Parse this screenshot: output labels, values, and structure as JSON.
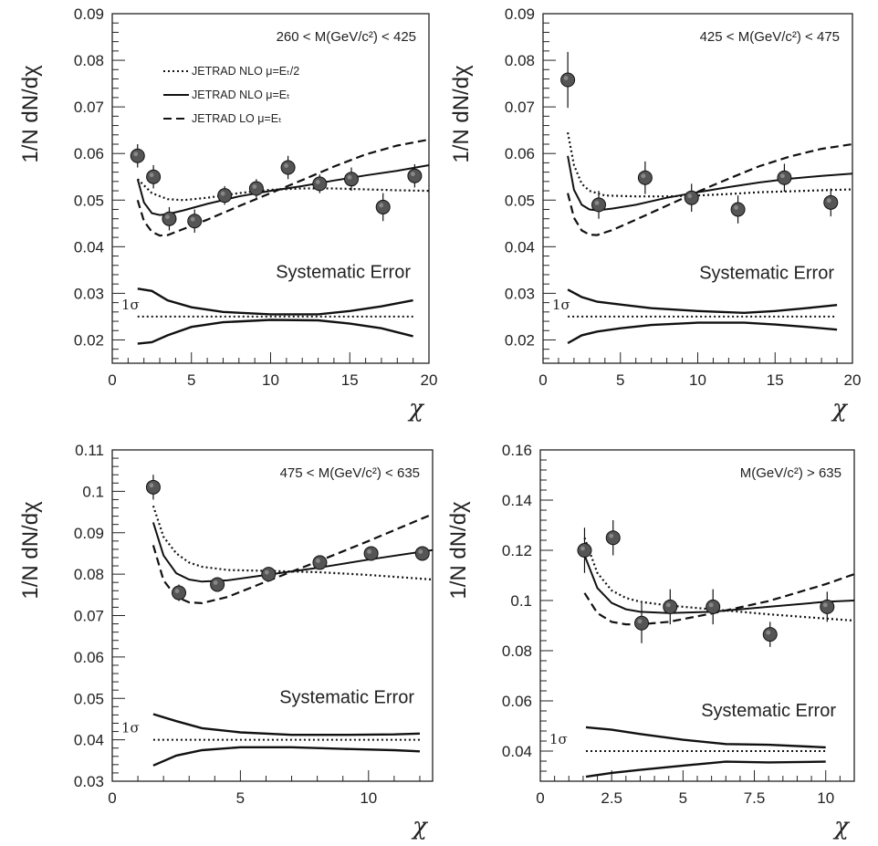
{
  "chart_data": [
    {
      "type": "scatter",
      "range_label": "260 < M(GeV/c²) < 425",
      "ylabel": "1/N dN/dχ",
      "xlabel": "χ",
      "xlim": [
        0,
        20
      ],
      "ylim": [
        0.015,
        0.09
      ],
      "xticks": [
        "0",
        "5",
        "10",
        "15",
        "20"
      ],
      "yticks": [
        "0.02",
        "0.03",
        "0.04",
        "0.05",
        "0.06",
        "0.07",
        "0.08",
        "0.09"
      ],
      "data_points": {
        "x": [
          1.6,
          2.6,
          3.6,
          5.2,
          7.1,
          9.1,
          11.1,
          13.1,
          15.1,
          17.1,
          19.1
        ],
        "y": [
          0.0595,
          0.055,
          0.046,
          0.0455,
          0.051,
          0.0525,
          0.057,
          0.0535,
          0.0545,
          0.0485,
          0.0552
        ],
        "err": [
          0.0025,
          0.0025,
          0.0025,
          0.0025,
          0.002,
          0.002,
          0.0025,
          0.002,
          0.0025,
          0.003,
          0.0025
        ]
      },
      "series": [
        {
          "name": "JETRAD NLO μ=Eₜ/2",
          "style": "dotted",
          "x": [
            1.6,
            2.5,
            3.5,
            4.5,
            6,
            8,
            10,
            12,
            14,
            16,
            18,
            20
          ],
          "y": [
            0.0545,
            0.0515,
            0.0502,
            0.05,
            0.0505,
            0.0515,
            0.0522,
            0.0525,
            0.0525,
            0.0523,
            0.0521,
            0.052
          ]
        },
        {
          "name": "JETRAD NLO μ=Eₜ",
          "style": "solid",
          "x": [
            1.6,
            2,
            2.5,
            3,
            3.5,
            4.5,
            6,
            8,
            10,
            12,
            14,
            16,
            18,
            20
          ],
          "y": [
            0.0545,
            0.0495,
            0.0472,
            0.0468,
            0.047,
            0.0478,
            0.0492,
            0.0508,
            0.052,
            0.053,
            0.0542,
            0.0553,
            0.0563,
            0.0575
          ]
        },
        {
          "name": "JETRAD LO μ=Eₜ",
          "style": "dashed",
          "x": [
            1.6,
            2,
            2.5,
            3,
            3.5,
            4.5,
            6,
            8,
            10,
            12,
            14,
            16,
            18,
            20
          ],
          "y": [
            0.05,
            0.0455,
            0.0432,
            0.0424,
            0.0425,
            0.0438,
            0.0458,
            0.0487,
            0.0515,
            0.0543,
            0.0572,
            0.0598,
            0.0617,
            0.063
          ]
        }
      ],
      "systematic": {
        "label": "Systematic Error",
        "sigma_label": "1σ",
        "upper": {
          "x": [
            1.6,
            2.5,
            3.5,
            5,
            7,
            10,
            13,
            15,
            17,
            19
          ],
          "y": [
            0.031,
            0.0305,
            0.0285,
            0.027,
            0.026,
            0.0255,
            0.0255,
            0.0262,
            0.0272,
            0.0285
          ]
        },
        "center": {
          "x": [
            1.6,
            19
          ],
          "y": [
            0.025,
            0.025
          ]
        },
        "lower": {
          "x": [
            1.6,
            2.5,
            3.5,
            5,
            7,
            10,
            13,
            15,
            17,
            19
          ],
          "y": [
            0.0192,
            0.0195,
            0.021,
            0.0228,
            0.0238,
            0.0243,
            0.0242,
            0.0235,
            0.0225,
            0.0208
          ]
        }
      },
      "legend": [
        {
          "text": "JETRAD NLO μ=Eₜ/2",
          "style": "dotted"
        },
        {
          "text": "JETRAD NLO μ=Eₜ",
          "style": "solid"
        },
        {
          "text": "JETRAD LO μ=Eₜ",
          "style": "dashed"
        }
      ]
    },
    {
      "type": "scatter",
      "range_label": "425 < M(GeV/c²) < 475",
      "ylabel": "1/N dN/dχ",
      "xlabel": "χ",
      "xlim": [
        0,
        20
      ],
      "ylim": [
        0.015,
        0.09
      ],
      "xticks": [
        "0",
        "5",
        "10",
        "15",
        "20"
      ],
      "yticks": [
        "0.02",
        "0.03",
        "0.04",
        "0.05",
        "0.06",
        "0.07",
        "0.08",
        "0.09"
      ],
      "data_points": {
        "x": [
          1.6,
          3.6,
          6.6,
          9.6,
          12.6,
          15.6,
          18.6
        ],
        "y": [
          0.0758,
          0.049,
          0.0548,
          0.0505,
          0.048,
          0.0548,
          0.0495
        ],
        "err": [
          0.006,
          0.003,
          0.0035,
          0.003,
          0.003,
          0.003,
          0.003
        ]
      },
      "series": [
        {
          "x": [
            1.6,
            2,
            2.5,
            3,
            4,
            6,
            8,
            10,
            12,
            14,
            16,
            18,
            20
          ],
          "y": [
            0.0645,
            0.0575,
            0.0535,
            0.052,
            0.051,
            0.0508,
            0.0508,
            0.051,
            0.0513,
            0.0517,
            0.0519,
            0.0521,
            0.0523
          ],
          "style": "dotted"
        },
        {
          "x": [
            1.6,
            2,
            2.5,
            3,
            3.5,
            4.5,
            6,
            8,
            10,
            12,
            14,
            16,
            18,
            20
          ],
          "y": [
            0.0595,
            0.0522,
            0.049,
            0.048,
            0.0478,
            0.0482,
            0.049,
            0.0505,
            0.0517,
            0.0528,
            0.0538,
            0.0546,
            0.0552,
            0.0557
          ],
          "style": "solid"
        },
        {
          "x": [
            1.6,
            2,
            2.5,
            3,
            3.5,
            4.5,
            6,
            8,
            10,
            12,
            14,
            16,
            18,
            20
          ],
          "y": [
            0.0515,
            0.0462,
            0.0435,
            0.0426,
            0.0425,
            0.0436,
            0.0458,
            0.0488,
            0.0518,
            0.0546,
            0.0573,
            0.0594,
            0.061,
            0.062
          ],
          "style": "dashed"
        }
      ],
      "systematic": {
        "label": "Systematic Error",
        "sigma_label": "1σ",
        "upper": {
          "x": [
            1.6,
            2.5,
            3.5,
            5,
            7,
            10,
            13,
            15,
            17,
            19
          ],
          "y": [
            0.0308,
            0.0292,
            0.0282,
            0.0276,
            0.0268,
            0.0262,
            0.0258,
            0.0262,
            0.0268,
            0.0275
          ]
        },
        "center": {
          "x": [
            1.6,
            19
          ],
          "y": [
            0.025,
            0.025
          ]
        },
        "lower": {
          "x": [
            1.6,
            2.5,
            3.5,
            5,
            7,
            10,
            13,
            15,
            17,
            19
          ],
          "y": [
            0.0193,
            0.021,
            0.0218,
            0.0225,
            0.0232,
            0.0237,
            0.0237,
            0.0233,
            0.0228,
            0.0222
          ]
        }
      }
    },
    {
      "type": "scatter",
      "range_label": "475 < M(GeV/c²) < 635",
      "ylabel": "1/N dN/dχ",
      "xlabel": "χ",
      "xlim": [
        0,
        12.5
      ],
      "ylim": [
        0.03,
        0.11
      ],
      "xticks": [
        "0",
        "5",
        "10"
      ],
      "yticks": [
        "0.03",
        "0.04",
        "0.05",
        "0.06",
        "0.07",
        "0.08",
        "0.09",
        "0.1",
        "0.11"
      ],
      "data_points": {
        "x": [
          1.6,
          2.6,
          4.1,
          6.1,
          8.1,
          10.1,
          12.1
        ],
        "y": [
          0.101,
          0.0755,
          0.0775,
          0.08,
          0.0828,
          0.085,
          0.085
        ],
        "err": [
          0.003,
          0.002,
          0.0015,
          0.0015,
          0.0015,
          0.0015,
          0.0015
        ]
      },
      "series": [
        {
          "x": [
            1.6,
            2,
            2.5,
            3,
            3.5,
            4.5,
            6,
            8,
            10,
            12.5
          ],
          "y": [
            0.0965,
            0.089,
            0.085,
            0.0828,
            0.0818,
            0.081,
            0.0808,
            0.0805,
            0.0798,
            0.0787
          ],
          "style": "dotted"
        },
        {
          "x": [
            1.6,
            2,
            2.5,
            3,
            3.5,
            4.5,
            6,
            8,
            10,
            12.5
          ],
          "y": [
            0.0925,
            0.0845,
            0.0802,
            0.0787,
            0.0782,
            0.0785,
            0.0798,
            0.0815,
            0.0835,
            0.0858
          ],
          "style": "solid"
        },
        {
          "x": [
            1.6,
            2,
            2.5,
            3,
            3.5,
            4.5,
            6,
            8,
            10,
            12.5
          ],
          "y": [
            0.087,
            0.0785,
            0.0745,
            0.0732,
            0.073,
            0.0745,
            0.0782,
            0.083,
            0.088,
            0.0945
          ],
          "style": "dashed"
        }
      ],
      "systematic": {
        "label": "Systematic Error",
        "sigma_label": "1σ",
        "upper": {
          "x": [
            1.6,
            2.5,
            3.5,
            5,
            7,
            9,
            11,
            12
          ],
          "y": [
            0.0462,
            0.0445,
            0.0428,
            0.0418,
            0.0412,
            0.0412,
            0.0413,
            0.0415
          ]
        },
        "center": {
          "x": [
            1.6,
            12
          ],
          "y": [
            0.04,
            0.04
          ]
        },
        "lower": {
          "x": [
            1.6,
            2.5,
            3.5,
            5,
            7,
            9,
            11,
            12
          ],
          "y": [
            0.0338,
            0.0362,
            0.0375,
            0.0382,
            0.0382,
            0.0378,
            0.0375,
            0.0372
          ]
        }
      }
    },
    {
      "type": "scatter",
      "range_label": "M(GeV/c²) > 635",
      "ylabel": "1/N dN/dχ",
      "xlabel": "χ",
      "xlim": [
        0,
        11
      ],
      "ylim": [
        0.028,
        0.16
      ],
      "xticks": [
        "0",
        "2.5",
        "5",
        "7.5",
        "10"
      ],
      "yticks": [
        "0.04",
        "0.06",
        "0.08",
        "0.1",
        "0.12",
        "0.14",
        "0.16"
      ],
      "data_points": {
        "x": [
          1.55,
          2.55,
          3.55,
          4.55,
          6.05,
          8.05,
          10.05
        ],
        "y": [
          0.12,
          0.125,
          0.091,
          0.0975,
          0.0975,
          0.0865,
          0.0975
        ],
        "err": [
          0.009,
          0.007,
          0.008,
          0.007,
          0.007,
          0.005,
          0.006
        ]
      },
      "series": [
        {
          "x": [
            1.55,
            2,
            2.5,
            3,
            3.5,
            4.5,
            6,
            8,
            10,
            11
          ],
          "y": [
            0.125,
            0.111,
            0.104,
            0.101,
            0.0995,
            0.098,
            0.0965,
            0.0945,
            0.0928,
            0.092
          ],
          "style": "dotted"
        },
        {
          "x": [
            1.55,
            2,
            2.5,
            3,
            3.5,
            4.5,
            6,
            8,
            10,
            11
          ],
          "y": [
            0.118,
            0.105,
            0.099,
            0.0965,
            0.0955,
            0.095,
            0.0955,
            0.0975,
            0.0995,
            0.1
          ],
          "style": "solid"
        },
        {
          "x": [
            1.55,
            2,
            2.5,
            3,
            3.5,
            4.5,
            6,
            8,
            10,
            11
          ],
          "y": [
            0.103,
            0.095,
            0.0915,
            0.0905,
            0.0905,
            0.0915,
            0.0948,
            0.0998,
            0.1065,
            0.1105
          ],
          "style": "dashed"
        }
      ],
      "systematic": {
        "label": "Systematic Error",
        "sigma_label": "1σ",
        "upper": {
          "x": [
            1.6,
            2.5,
            3.5,
            5,
            6.5,
            8,
            10
          ],
          "y": [
            0.0495,
            0.0485,
            0.0468,
            0.0445,
            0.0428,
            0.0425,
            0.0415
          ]
        },
        "center": {
          "x": [
            1.6,
            10
          ],
          "y": [
            0.04,
            0.04
          ]
        },
        "lower": {
          "x": [
            1.6,
            2.5,
            3.5,
            5,
            6.5,
            8,
            10
          ],
          "y": [
            0.0298,
            0.0313,
            0.0325,
            0.0342,
            0.0358,
            0.0355,
            0.0358
          ]
        }
      }
    }
  ]
}
